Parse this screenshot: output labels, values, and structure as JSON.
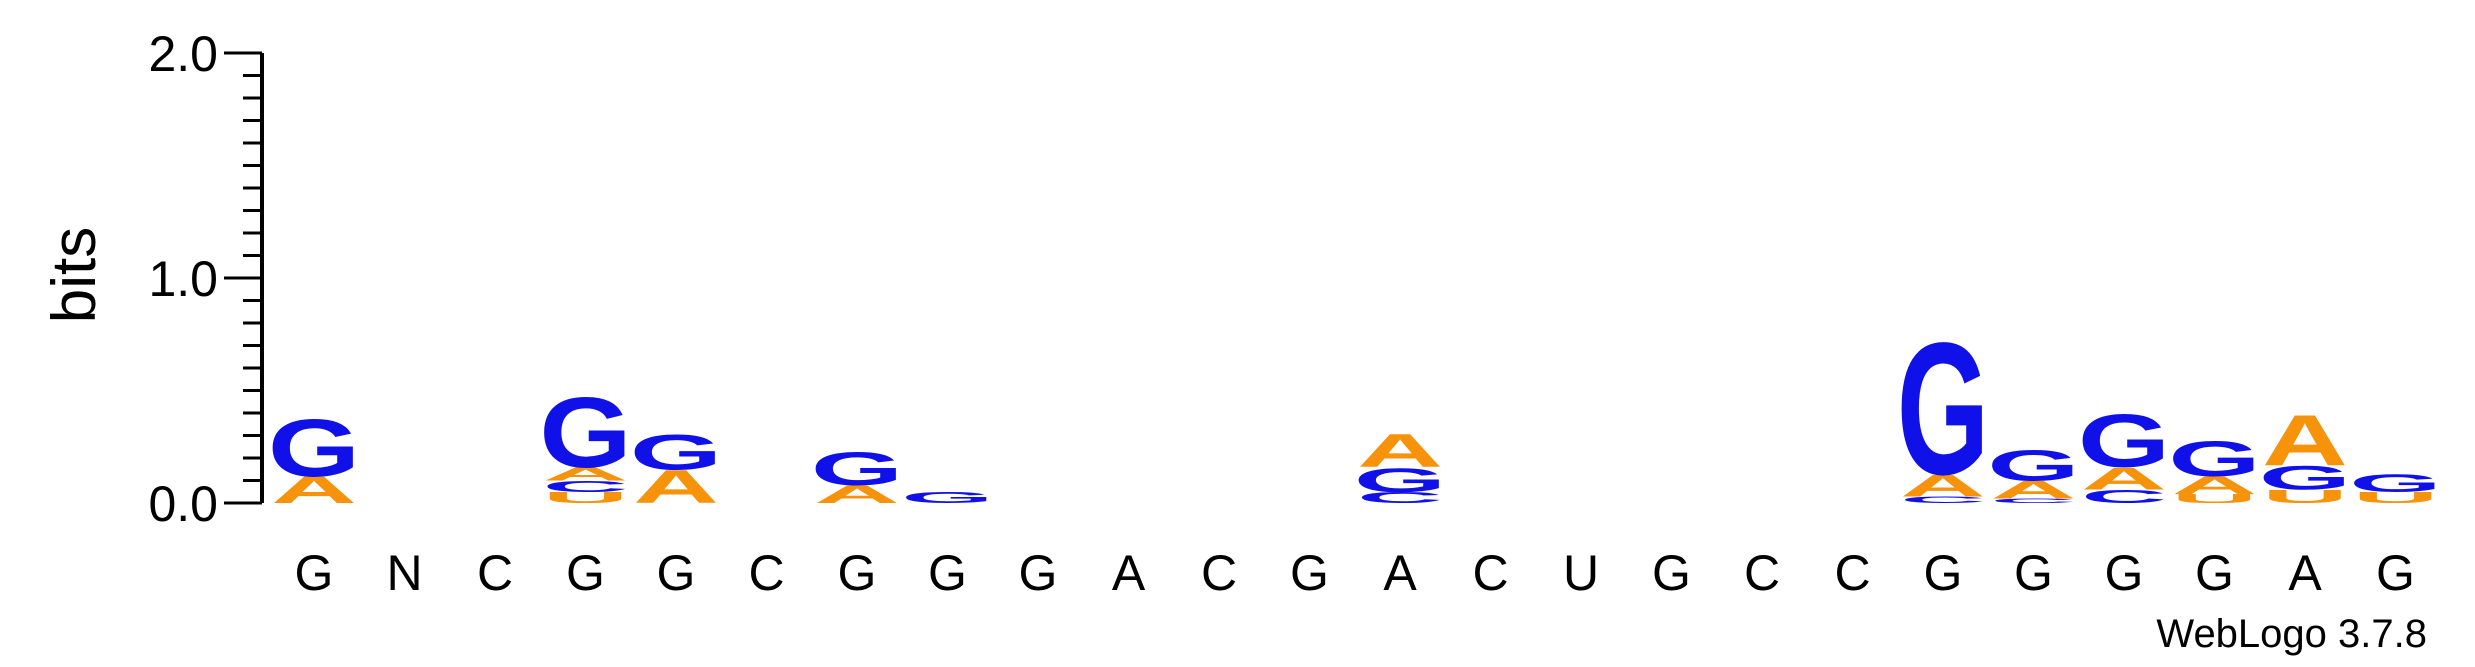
{
  "chart_data": {
    "type": "sequence-logo",
    "ylabel": "bits",
    "ylim": [
      0,
      2.0
    ],
    "yticks": [
      "0.0",
      "1.0",
      "2.0"
    ],
    "positions": [
      "G",
      "N",
      "C",
      "G",
      "G",
      "C",
      "G",
      "G",
      "G",
      "A",
      "C",
      "G",
      "A",
      "C",
      "U",
      "G",
      "C",
      "C",
      "G",
      "G",
      "G",
      "G",
      "A",
      "G"
    ],
    "colors": {
      "G": "#1010e8",
      "A": "#f7920b",
      "C": "#1010e8",
      "U": "#f7920b"
    },
    "stacks": [
      [
        {
          "letter": "A",
          "bits": 0.12
        },
        {
          "letter": "G",
          "bits": 0.26
        }
      ],
      [],
      [],
      [
        {
          "letter": "U",
          "bits": 0.05
        },
        {
          "letter": "C",
          "bits": 0.05
        },
        {
          "letter": "A",
          "bits": 0.06
        },
        {
          "letter": "G",
          "bits": 0.32
        }
      ],
      [
        {
          "letter": "A",
          "bits": 0.15
        },
        {
          "letter": "G",
          "bits": 0.16
        }
      ],
      [],
      [
        {
          "letter": "A",
          "bits": 0.08
        },
        {
          "letter": "G",
          "bits": 0.15
        }
      ],
      [
        {
          "letter": "G",
          "bits": 0.05
        }
      ],
      [],
      [],
      [],
      [],
      [
        {
          "letter": "C",
          "bits": 0.05
        },
        {
          "letter": "G",
          "bits": 0.11
        },
        {
          "letter": "A",
          "bits": 0.15
        }
      ],
      [],
      [],
      [],
      [],
      [],
      [
        {
          "letter": "C",
          "bits": 0.03
        },
        {
          "letter": "A",
          "bits": 0.1
        },
        {
          "letter": "G",
          "bits": 0.6
        }
      ],
      [
        {
          "letter": "C",
          "bits": 0.02
        },
        {
          "letter": "A",
          "bits": 0.08
        },
        {
          "letter": "G",
          "bits": 0.14
        }
      ],
      [
        {
          "letter": "C",
          "bits": 0.06
        },
        {
          "letter": "A",
          "bits": 0.1
        },
        {
          "letter": "G",
          "bits": 0.24
        }
      ],
      [
        {
          "letter": "U",
          "bits": 0.04
        },
        {
          "letter": "A",
          "bits": 0.08
        },
        {
          "letter": "G",
          "bits": 0.16
        }
      ],
      [
        {
          "letter": "U",
          "bits": 0.06
        },
        {
          "letter": "G",
          "bits": 0.11
        },
        {
          "letter": "A",
          "bits": 0.23
        }
      ],
      [
        {
          "letter": "U",
          "bits": 0.05
        },
        {
          "letter": "G",
          "bits": 0.08
        }
      ]
    ],
    "credit": "WebLogo 3.7.8"
  }
}
